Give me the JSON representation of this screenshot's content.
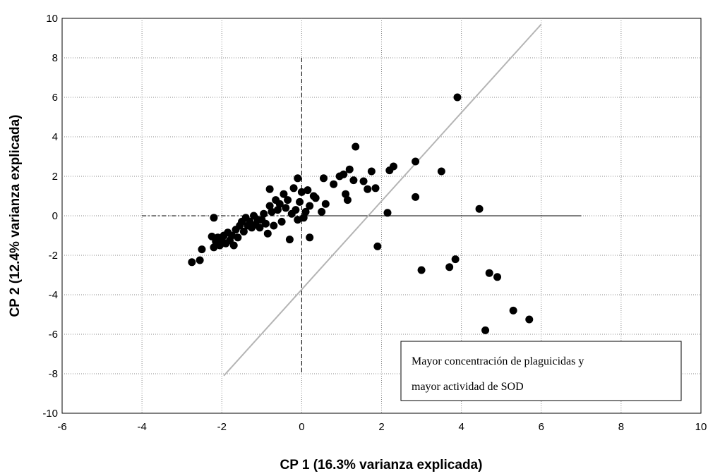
{
  "chart_data": {
    "type": "scatter",
    "xlabel": "CP 1 (16.3% varianza explicada)",
    "ylabel": "CP 2 (12.4%  varianza explicada)",
    "xlim": [
      -6,
      10
    ],
    "ylim": [
      -10,
      10
    ],
    "xticks": [
      "-6",
      "-4",
      "-2",
      "0",
      "2",
      "4",
      "6",
      "8",
      "10"
    ],
    "yticks": [
      "-10",
      "-8",
      "-6",
      "-4",
      "-2",
      "0",
      "2",
      "4",
      "6",
      "8",
      "10"
    ],
    "grid": true,
    "points": [
      [
        -2.75,
        -2.35
      ],
      [
        -2.55,
        -2.25
      ],
      [
        -2.5,
        -1.7
      ],
      [
        -2.25,
        -1.05
      ],
      [
        -2.2,
        -0.1
      ],
      [
        -2.2,
        -1.6
      ],
      [
        -2.15,
        -1.3
      ],
      [
        -2.1,
        -1.1
      ],
      [
        -2.05,
        -1.5
      ],
      [
        -2.0,
        -1.2
      ],
      [
        -1.95,
        -1.0
      ],
      [
        -1.9,
        -1.4
      ],
      [
        -1.85,
        -0.85
      ],
      [
        -1.8,
        -1.25
      ],
      [
        -1.75,
        -1.0
      ],
      [
        -1.7,
        -1.5
      ],
      [
        -1.65,
        -0.7
      ],
      [
        -1.6,
        -1.1
      ],
      [
        -1.55,
        -0.5
      ],
      [
        -1.5,
        -0.3
      ],
      [
        -1.45,
        -0.8
      ],
      [
        -1.4,
        -0.1
      ],
      [
        -1.35,
        -0.5
      ],
      [
        -1.3,
        -0.3
      ],
      [
        -1.25,
        -0.6
      ],
      [
        -1.2,
        0.0
      ],
      [
        -1.15,
        -0.45
      ],
      [
        -1.1,
        -0.2
      ],
      [
        -1.05,
        -0.6
      ],
      [
        -1.0,
        -0.2
      ],
      [
        -0.95,
        0.1
      ],
      [
        -0.9,
        -0.4
      ],
      [
        -0.85,
        -0.9
      ],
      [
        -0.8,
        1.35
      ],
      [
        -0.8,
        0.5
      ],
      [
        -0.75,
        0.2
      ],
      [
        -0.7,
        -0.5
      ],
      [
        -0.65,
        0.8
      ],
      [
        -0.6,
        0.3
      ],
      [
        -0.55,
        0.6
      ],
      [
        -0.5,
        -0.3
      ],
      [
        -0.45,
        1.1
      ],
      [
        -0.4,
        0.4
      ],
      [
        -0.35,
        0.8
      ],
      [
        -0.3,
        -1.2
      ],
      [
        -0.25,
        0.1
      ],
      [
        -0.2,
        1.4
      ],
      [
        -0.15,
        0.3
      ],
      [
        -0.1,
        -0.2
      ],
      [
        -0.1,
        1.9
      ],
      [
        -0.05,
        0.7
      ],
      [
        0.0,
        1.2
      ],
      [
        0.05,
        -0.1
      ],
      [
        0.1,
        0.2
      ],
      [
        0.15,
        1.3
      ],
      [
        0.2,
        0.5
      ],
      [
        0.2,
        -1.1
      ],
      [
        0.3,
        1.0
      ],
      [
        0.35,
        0.9
      ],
      [
        0.5,
        0.2
      ],
      [
        0.55,
        1.9
      ],
      [
        0.6,
        0.6
      ],
      [
        0.8,
        1.6
      ],
      [
        0.95,
        2.0
      ],
      [
        1.05,
        2.1
      ],
      [
        1.1,
        1.1
      ],
      [
        1.15,
        0.8
      ],
      [
        1.2,
        2.35
      ],
      [
        1.3,
        1.8
      ],
      [
        1.35,
        3.5
      ],
      [
        1.55,
        1.75
      ],
      [
        1.65,
        1.35
      ],
      [
        1.75,
        2.25
      ],
      [
        1.85,
        1.4
      ],
      [
        1.9,
        -1.55
      ],
      [
        2.15,
        0.15
      ],
      [
        2.2,
        2.3
      ],
      [
        2.3,
        2.5
      ],
      [
        2.85,
        2.75
      ],
      [
        2.85,
        0.95
      ],
      [
        3.0,
        -2.75
      ],
      [
        3.5,
        2.25
      ],
      [
        3.7,
        -2.6
      ],
      [
        3.85,
        -2.2
      ],
      [
        3.9,
        6.0
      ],
      [
        4.45,
        0.35
      ],
      [
        4.6,
        -5.8
      ],
      [
        4.7,
        -2.9
      ],
      [
        4.9,
        -3.1
      ],
      [
        5.3,
        -4.8
      ],
      [
        5.7,
        -5.25
      ]
    ],
    "annotation": [
      "Mayor concentración de plaguicidas y",
      "mayor actividad de SOD"
    ]
  }
}
